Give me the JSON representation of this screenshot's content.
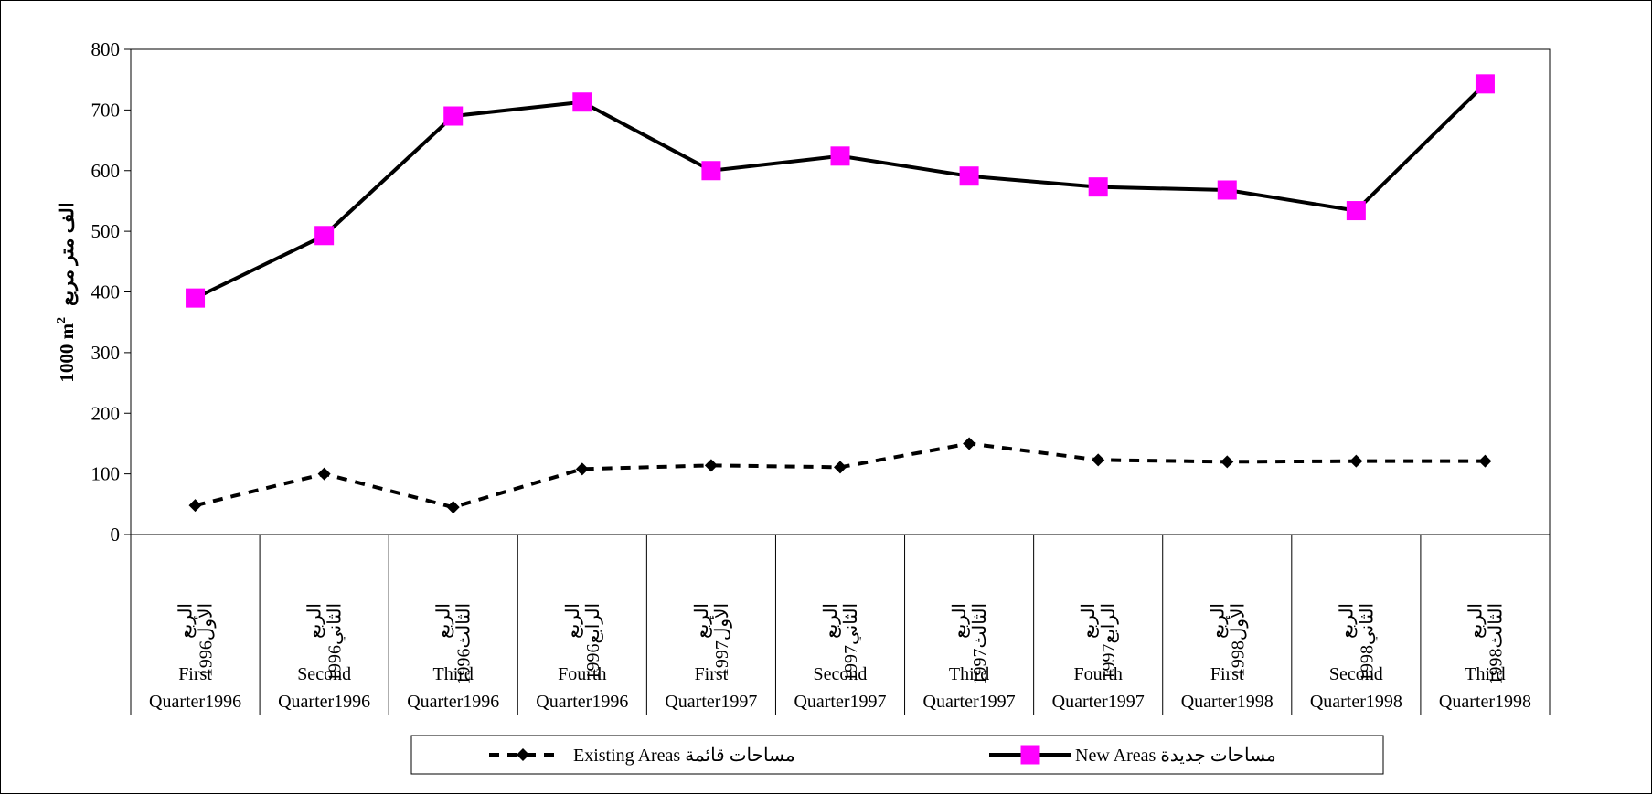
{
  "chart_data": {
    "type": "line",
    "ylabel_arabic": "الف متر مربع",
    "ylabel_unit": "1000 m",
    "ylabel_sup": "2",
    "ylim": [
      0,
      800
    ],
    "yticks": [
      "0",
      "100",
      "200",
      "300",
      "400",
      "500",
      "600",
      "700",
      "800"
    ],
    "grid": false,
    "legend_position": "bottom",
    "categories": [
      {
        "arabic_line1": "الربع",
        "arabic_line2": "الأول1996",
        "english_line1": "First",
        "english_line2": "Quarter1996"
      },
      {
        "arabic_line1": "الربع",
        "arabic_line2": "الثاني1996",
        "english_line1": "Second",
        "english_line2": "Quarter1996"
      },
      {
        "arabic_line1": "الربع",
        "arabic_line2": "الثالث1996",
        "english_line1": "Third",
        "english_line2": "Quarter1996"
      },
      {
        "arabic_line1": "الربع",
        "arabic_line2": "الرابع1996",
        "english_line1": "Fourth",
        "english_line2": "Quarter1996"
      },
      {
        "arabic_line1": "الربع",
        "arabic_line2": "الأول1997",
        "english_line1": "First",
        "english_line2": "Quarter1997"
      },
      {
        "arabic_line1": "الربع",
        "arabic_line2": "الثاني1997",
        "english_line1": "Second",
        "english_line2": "Quarter1997"
      },
      {
        "arabic_line1": "الربع",
        "arabic_line2": "الثالث1997",
        "english_line1": "Third",
        "english_line2": "Quarter1997"
      },
      {
        "arabic_line1": "الربع",
        "arabic_line2": "الرابع1997",
        "english_line1": "Fourth",
        "english_line2": "Quarter1997"
      },
      {
        "arabic_line1": "الربع",
        "arabic_line2": "الأول1998",
        "english_line1": "First",
        "english_line2": "Quarter1998"
      },
      {
        "arabic_line1": "الربع",
        "arabic_line2": "الثاني1998",
        "english_line1": "Second",
        "english_line2": "Quarter1998"
      },
      {
        "arabic_line1": "الربع",
        "arabic_line2": "الثالث1998",
        "english_line1": "Third",
        "english_line2": "Quarter1998"
      }
    ],
    "series": [
      {
        "name": "Existing Areas  مساحات  قائمة",
        "style": "dashed",
        "marker": "diamond",
        "line_color": "#000000",
        "marker_color": "#000000",
        "values": [
          48,
          100,
          45,
          108,
          114,
          111,
          150,
          123,
          120,
          121,
          121
        ]
      },
      {
        "name": "New Areas  مساحات  جديدة",
        "style": "solid",
        "marker": "square",
        "line_color": "#000000",
        "marker_color": "#ff00ff",
        "values": [
          390,
          493,
          690,
          713,
          600,
          624,
          591,
          573,
          568,
          534,
          743
        ]
      }
    ]
  }
}
